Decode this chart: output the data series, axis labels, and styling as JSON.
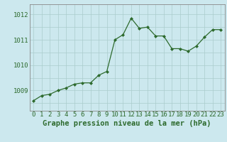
{
  "hours": [
    0,
    1,
    2,
    3,
    4,
    5,
    6,
    7,
    8,
    9,
    10,
    11,
    12,
    13,
    14,
    15,
    16,
    17,
    18,
    19,
    20,
    21,
    22,
    23
  ],
  "pressure": [
    1008.6,
    1008.8,
    1008.85,
    1009.0,
    1009.1,
    1009.25,
    1009.3,
    1009.3,
    1009.6,
    1009.75,
    1011.0,
    1011.2,
    1011.85,
    1011.45,
    1011.5,
    1011.15,
    1011.15,
    1010.65,
    1010.65,
    1010.55,
    1010.75,
    1011.1,
    1011.4,
    1011.4
  ],
  "line_color": "#2d6a2d",
  "marker_color": "#2d6a2d",
  "bg_color": "#cce8ee",
  "grid_color": "#aacccc",
  "title": "Graphe pression niveau de la mer (hPa)",
  "xlabel_ticks": [
    0,
    1,
    2,
    3,
    4,
    5,
    6,
    7,
    8,
    9,
    10,
    11,
    12,
    13,
    14,
    15,
    16,
    17,
    18,
    19,
    20,
    21,
    22,
    23
  ],
  "ylim_min": 1008.2,
  "ylim_max": 1012.4,
  "yticks": [
    1009,
    1010,
    1011,
    1012
  ],
  "title_fontsize": 7.5,
  "tick_fontsize": 6.5
}
